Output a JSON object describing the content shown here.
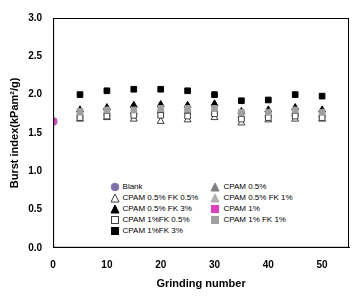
{
  "chart_data": {
    "type": "scatter",
    "x_label": "Grinding number",
    "y_label": "Burst index(kPam²/g)",
    "xlim": [
      0,
      55
    ],
    "xticks": [
      0,
      10,
      20,
      30,
      40,
      50
    ],
    "ylim": [
      0,
      3
    ],
    "yticks": [
      {
        "value": 0,
        "label": "0.0"
      },
      0.5,
      {
        "value": 1,
        "label": "1.0"
      },
      1.5,
      {
        "value": 2,
        "label": "2.0"
      },
      2.5,
      {
        "value": 3,
        "label": "3.0"
      }
    ],
    "grid": false,
    "legend": "lower center",
    "series": [
      {
        "name": "Blank",
        "color": "#8070a8",
        "marker": "circle",
        "x": [
          0
        ],
        "values": [
          1.65
        ]
      },
      {
        "name": "CPAM 0.5%",
        "color": "#808080",
        "marker": "triangle",
        "x": [
          5,
          10,
          15,
          20,
          25,
          30,
          35,
          40,
          45,
          50
        ],
        "values": [
          1.72,
          1.75,
          1.77,
          1.78,
          1.78,
          1.77,
          1.72,
          1.73,
          1.75,
          1.73
        ]
      },
      {
        "name": "CPAM 0.5% FK 0.5%",
        "color": "#404040",
        "marker": "triangle-open",
        "x": [
          5,
          10,
          15,
          20,
          25,
          30,
          35,
          40,
          45,
          50
        ],
        "values": [
          1.68,
          1.7,
          1.68,
          1.65,
          1.67,
          1.7,
          1.63,
          1.67,
          1.68,
          1.68
        ]
      },
      {
        "name": "CPAM 0.5% FK 1%",
        "color": "#b0b0b0",
        "marker": "triangle",
        "x": [
          5,
          10,
          15,
          20,
          25,
          30,
          35,
          40,
          45,
          50
        ],
        "values": [
          1.75,
          1.78,
          1.78,
          1.8,
          1.8,
          1.8,
          1.73,
          1.75,
          1.78,
          1.75
        ]
      },
      {
        "name": "CPAM 0.5% FK 3%",
        "color": "#000000",
        "marker": "triangle",
        "x": [
          5,
          10,
          15,
          20,
          25,
          30,
          35,
          40,
          45,
          50
        ],
        "values": [
          1.8,
          1.83,
          1.86,
          1.87,
          1.86,
          1.88,
          1.78,
          1.8,
          1.83,
          1.8
        ]
      },
      {
        "name": "CPAM 1%",
        "color": "#e040c0",
        "marker": "square",
        "x": [
          0
        ],
        "values": [
          1.65
        ]
      },
      {
        "name": "CPAM 1%FK 0.5%",
        "color": "#404040",
        "marker": "square-open",
        "x": [
          5,
          10,
          15,
          20,
          25,
          30,
          35,
          40,
          45,
          50
        ],
        "values": [
          1.7,
          1.72,
          1.73,
          1.73,
          1.72,
          1.75,
          1.68,
          1.7,
          1.72,
          1.7
        ]
      },
      {
        "name": "CPAM 1% FK 1%",
        "color": "#a0a0a0",
        "marker": "square",
        "x": [
          5,
          10,
          15,
          20,
          25,
          30,
          35,
          40,
          45,
          50
        ],
        "values": [
          1.78,
          1.8,
          1.8,
          1.82,
          1.82,
          1.82,
          1.77,
          1.77,
          1.8,
          1.77
        ]
      },
      {
        "name": "CPAM 1%FK 3%",
        "color": "#000000",
        "marker": "square",
        "x": [
          5,
          10,
          15,
          20,
          25,
          30,
          35,
          40,
          45,
          50
        ],
        "values": [
          2.0,
          2.05,
          2.07,
          2.07,
          2.05,
          2.0,
          1.92,
          1.93,
          2.0,
          1.98
        ]
      }
    ]
  }
}
